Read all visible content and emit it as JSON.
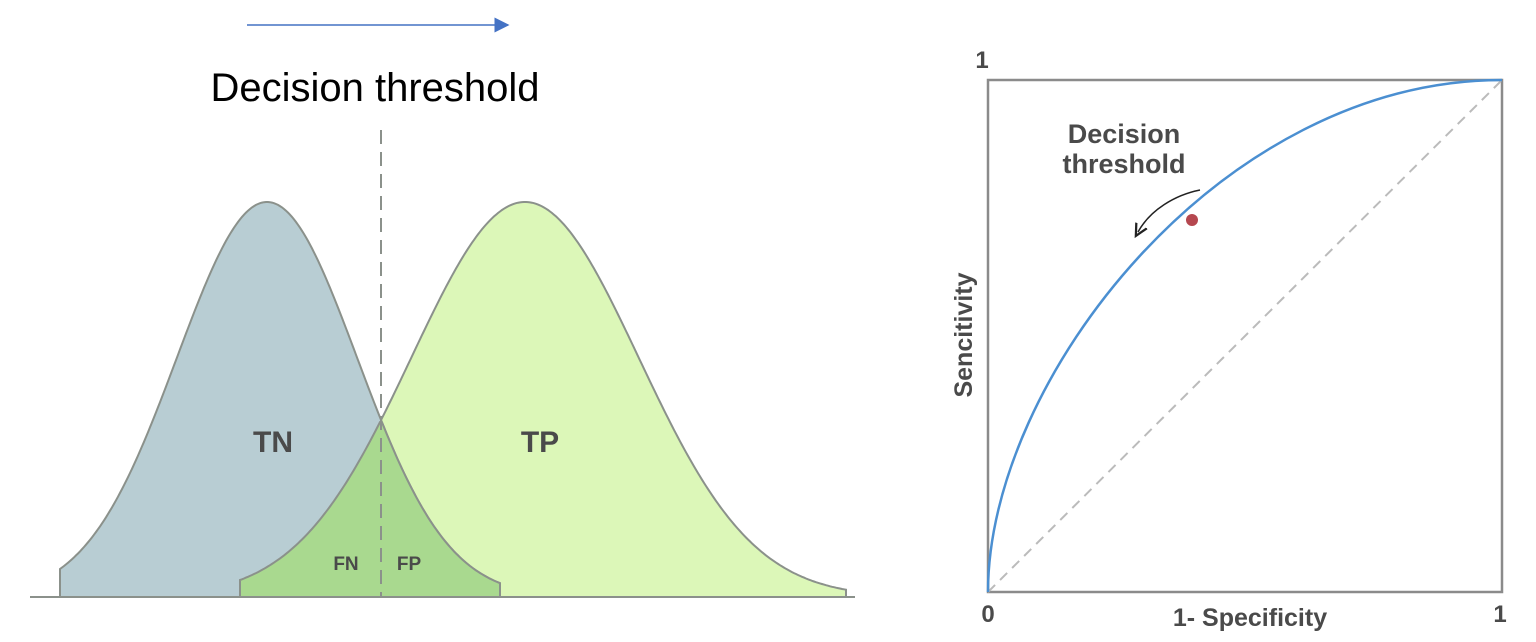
{
  "left": {
    "title": "Decision threshold",
    "labels": {
      "tn": "TN",
      "tp": "TP",
      "fn": "FN",
      "fp": "FP"
    }
  },
  "right": {
    "y_max": "1",
    "origin": "0",
    "x_max": "1",
    "y_axis_label": "Sencitivity",
    "x_axis_label": "1- Specificity",
    "annotation": [
      "Decision",
      "threshold"
    ]
  }
}
